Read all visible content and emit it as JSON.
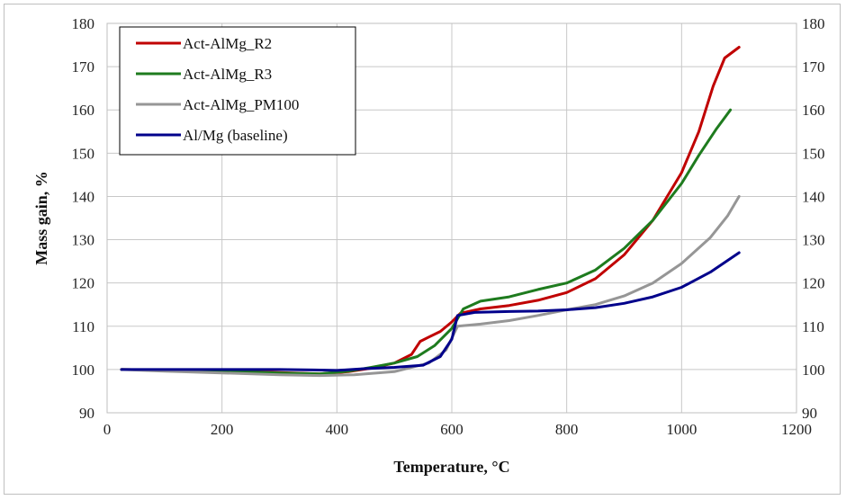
{
  "chart_data": {
    "type": "line",
    "title": "",
    "xlabel": "Temperature, °C",
    "ylabel": "Mass gain, %",
    "xlim": [
      0,
      1200
    ],
    "ylim": [
      90,
      180
    ],
    "xticks": [
      0,
      200,
      400,
      600,
      800,
      1000,
      1200
    ],
    "yticks": [
      90,
      100,
      110,
      120,
      130,
      140,
      150,
      160,
      170,
      180
    ],
    "secondary_yticks": [
      90,
      100,
      110,
      120,
      130,
      140,
      150,
      160,
      170,
      180
    ],
    "grid": true,
    "legend_position": "top-left",
    "series": [
      {
        "name": "Act-AlMg_R2",
        "color": "#c00000",
        "points": [
          [
            25,
            100
          ],
          [
            100,
            99.9
          ],
          [
            200,
            99.7
          ],
          [
            300,
            99.3
          ],
          [
            370,
            99.0
          ],
          [
            420,
            99.5
          ],
          [
            460,
            100.3
          ],
          [
            500,
            101.5
          ],
          [
            530,
            103.5
          ],
          [
            545,
            106.5
          ],
          [
            560,
            107.5
          ],
          [
            580,
            108.8
          ],
          [
            600,
            111.0
          ],
          [
            615,
            113.0
          ],
          [
            650,
            114.0
          ],
          [
            700,
            114.8
          ],
          [
            750,
            116.0
          ],
          [
            800,
            117.8
          ],
          [
            850,
            121.0
          ],
          [
            900,
            126.5
          ],
          [
            950,
            134.5
          ],
          [
            1000,
            145.5
          ],
          [
            1030,
            155.0
          ],
          [
            1055,
            165.5
          ],
          [
            1075,
            172.0
          ],
          [
            1100,
            174.5
          ]
        ]
      },
      {
        "name": "Act-AlMg_R3",
        "color": "#1e7b1e",
        "points": [
          [
            25,
            100
          ],
          [
            100,
            99.9
          ],
          [
            200,
            99.6
          ],
          [
            300,
            99.2
          ],
          [
            370,
            99.0
          ],
          [
            420,
            99.6
          ],
          [
            460,
            100.5
          ],
          [
            500,
            101.5
          ],
          [
            540,
            103.0
          ],
          [
            570,
            105.5
          ],
          [
            600,
            109.5
          ],
          [
            620,
            114.0
          ],
          [
            650,
            115.8
          ],
          [
            700,
            116.8
          ],
          [
            750,
            118.5
          ],
          [
            800,
            120.0
          ],
          [
            850,
            123.0
          ],
          [
            900,
            128.0
          ],
          [
            950,
            134.5
          ],
          [
            1000,
            143.0
          ],
          [
            1030,
            149.5
          ],
          [
            1060,
            155.5
          ],
          [
            1085,
            160.0
          ]
        ]
      },
      {
        "name": "Act-AlMg_PM100",
        "color": "#969696",
        "points": [
          [
            25,
            100
          ],
          [
            100,
            99.6
          ],
          [
            200,
            99.2
          ],
          [
            300,
            98.8
          ],
          [
            370,
            98.6
          ],
          [
            430,
            98.8
          ],
          [
            500,
            99.5
          ],
          [
            560,
            101.5
          ],
          [
            590,
            104.5
          ],
          [
            610,
            110.0
          ],
          [
            650,
            110.5
          ],
          [
            700,
            111.3
          ],
          [
            750,
            112.5
          ],
          [
            800,
            113.8
          ],
          [
            850,
            115.0
          ],
          [
            900,
            117.0
          ],
          [
            950,
            120.0
          ],
          [
            1000,
            124.5
          ],
          [
            1050,
            130.5
          ],
          [
            1080,
            135.5
          ],
          [
            1100,
            140.0
          ]
        ]
      },
      {
        "name": "Al/Mg (baseline)",
        "color": "#00008b",
        "points": [
          [
            25,
            100
          ],
          [
            100,
            100
          ],
          [
            200,
            100
          ],
          [
            300,
            100
          ],
          [
            360,
            99.9
          ],
          [
            400,
            99.8
          ],
          [
            450,
            100.2
          ],
          [
            500,
            100.5
          ],
          [
            550,
            101.0
          ],
          [
            580,
            103.0
          ],
          [
            600,
            107.0
          ],
          [
            610,
            112.5
          ],
          [
            640,
            113.2
          ],
          [
            700,
            113.4
          ],
          [
            750,
            113.5
          ],
          [
            800,
            113.8
          ],
          [
            850,
            114.3
          ],
          [
            900,
            115.3
          ],
          [
            950,
            116.8
          ],
          [
            1000,
            119.0
          ],
          [
            1050,
            122.5
          ],
          [
            1100,
            127.0
          ]
        ]
      }
    ]
  }
}
